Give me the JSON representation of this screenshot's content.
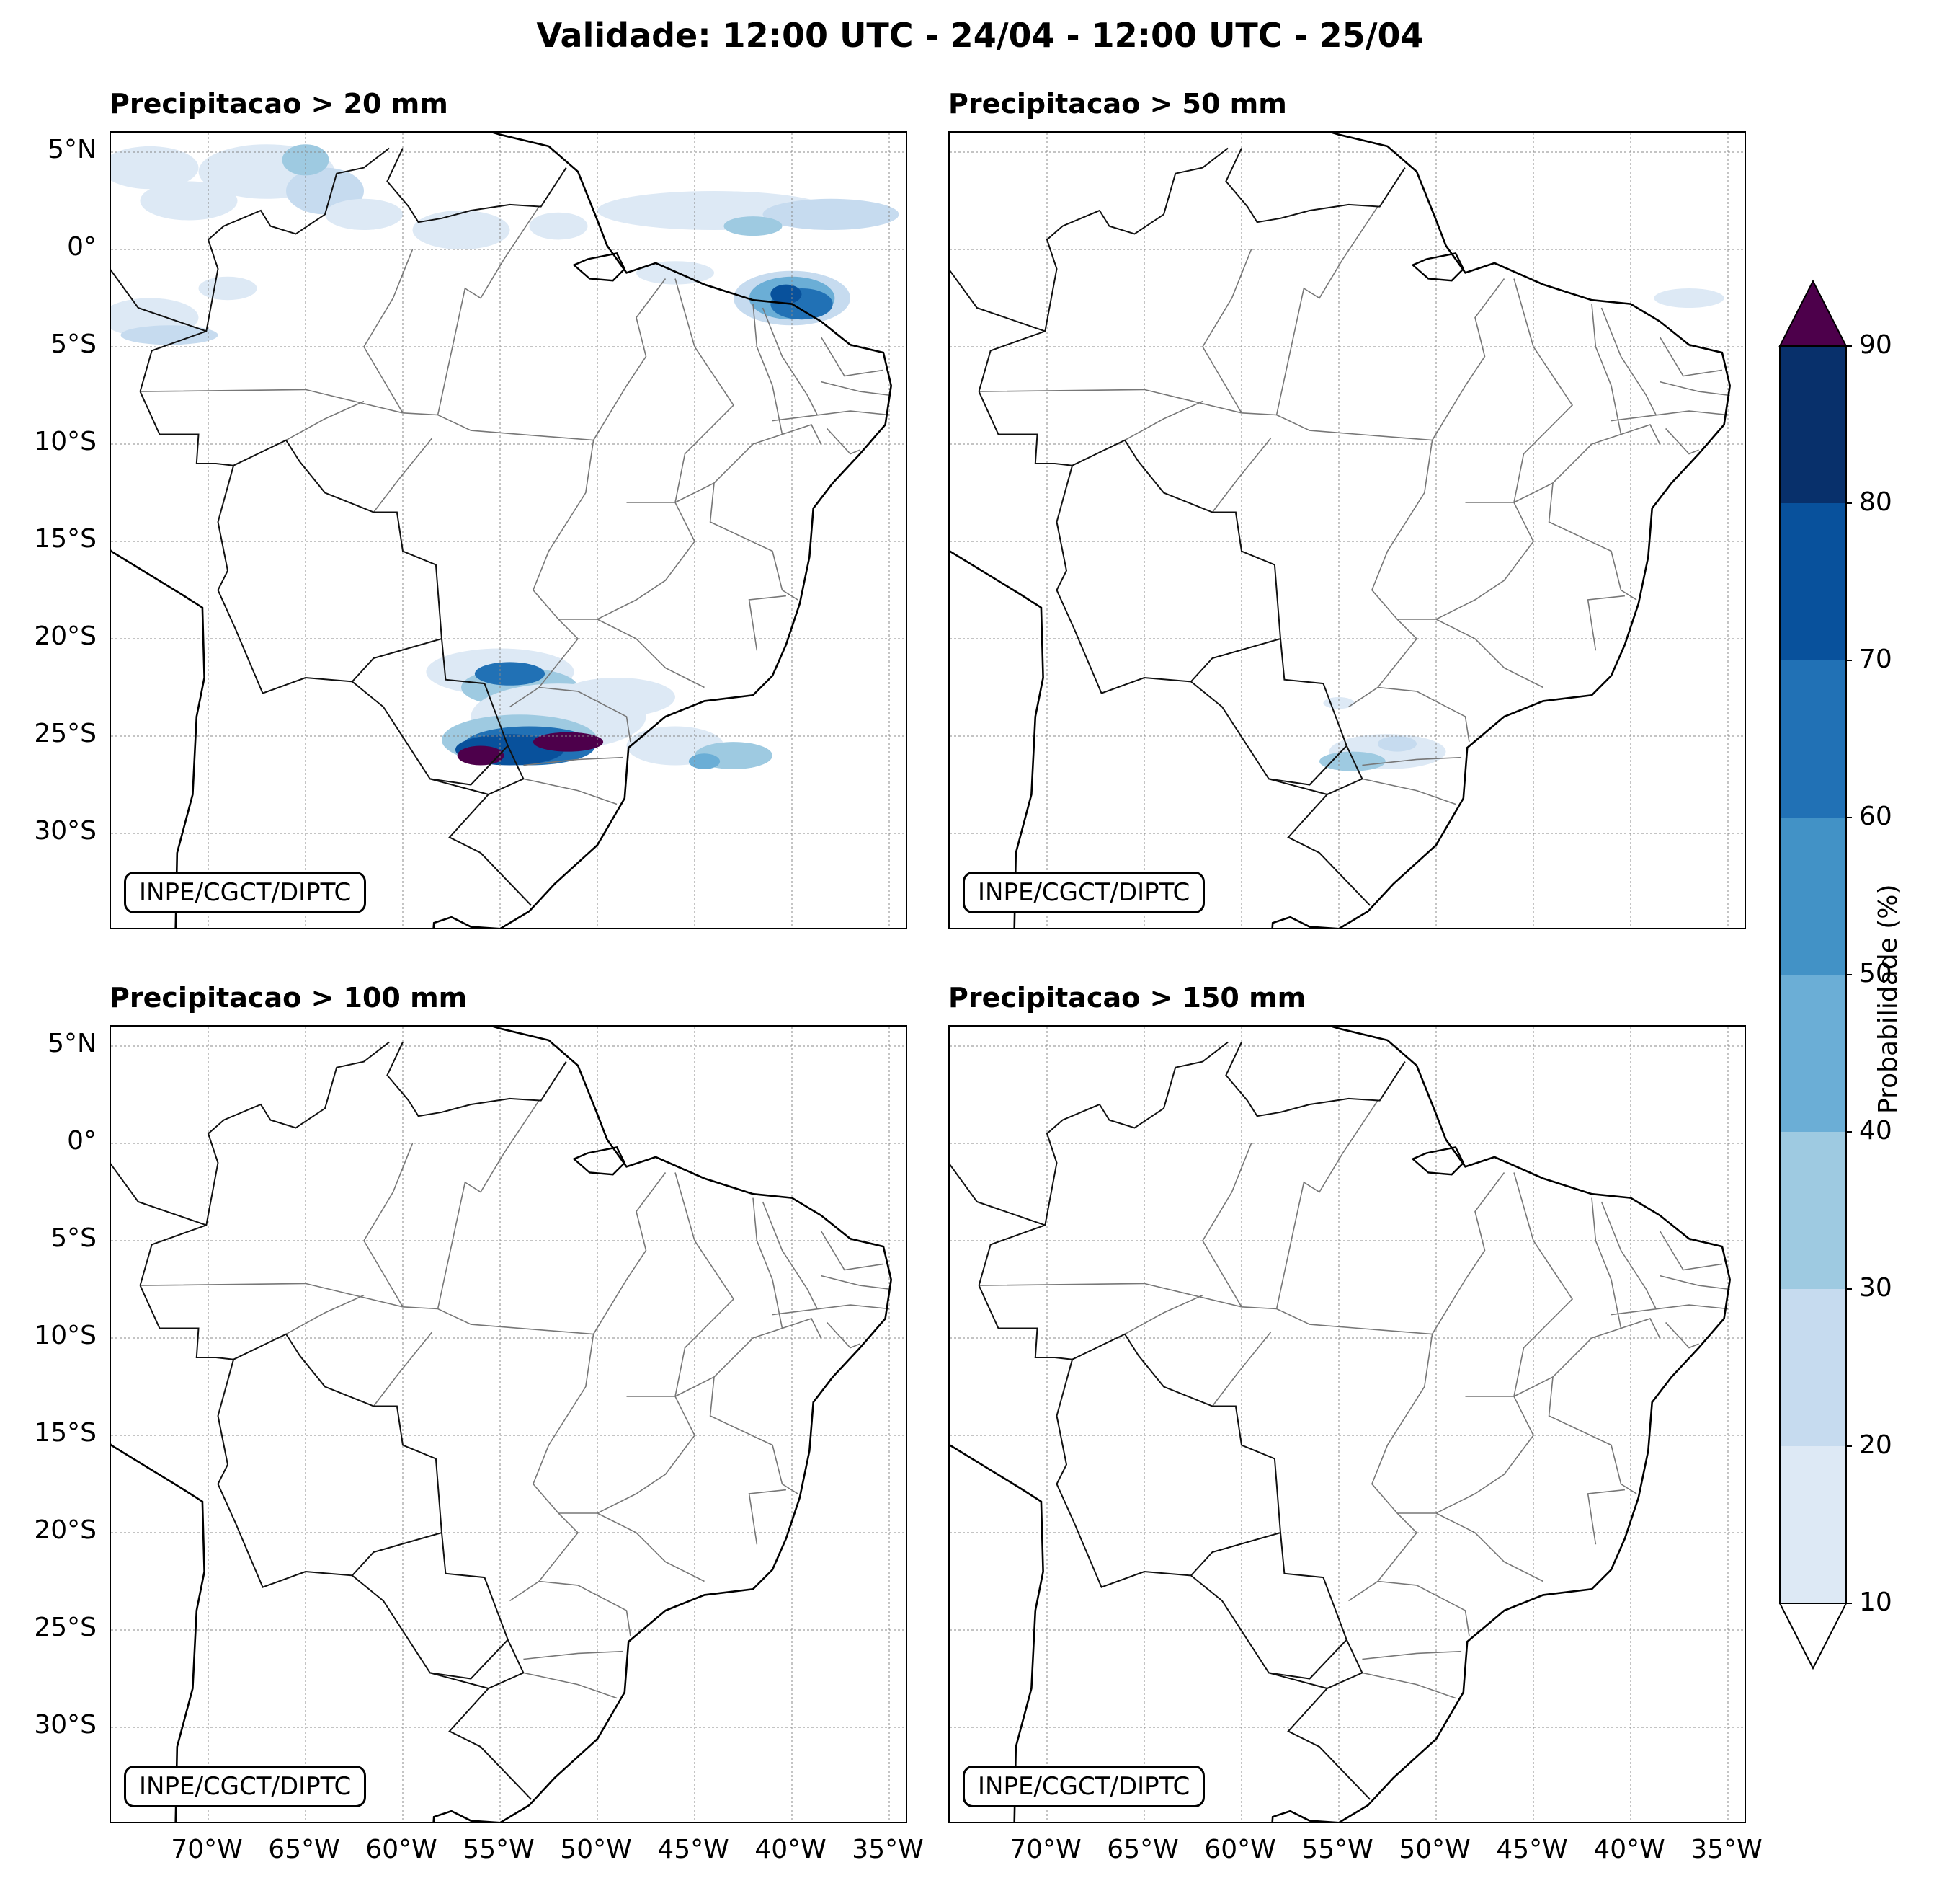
{
  "title": "Validade: 12:00 UTC - 24/04 - 12:00 UTC - 25/04",
  "panels": [
    {
      "id": "p20",
      "title": "Precipitacao > 20 mm",
      "credit": "INPE/CGCT/DIPTC"
    },
    {
      "id": "p50",
      "title": "Precipitacao > 50 mm",
      "credit": "INPE/CGCT/DIPTC"
    },
    {
      "id": "p100",
      "title": "Precipitacao > 100 mm",
      "credit": "INPE/CGCT/DIPTC"
    },
    {
      "id": "p150",
      "title": "Precipitacao > 150 mm",
      "credit": "INPE/CGCT/DIPTC"
    }
  ],
  "lat_labels": [
    "5°N",
    "0°",
    "5°S",
    "10°S",
    "15°S",
    "20°S",
    "25°S",
    "30°S"
  ],
  "lon_labels": [
    "70°W",
    "65°W",
    "60°W",
    "55°W",
    "50°W",
    "45°W",
    "40°W",
    "35°W"
  ],
  "colorbar": {
    "title": "Probabilidade (%)",
    "ticks": [
      "10",
      "20",
      "30",
      "40",
      "50",
      "60",
      "70",
      "80",
      "90"
    ],
    "colors": [
      "#dde9f5",
      "#c6dbef",
      "#9ecae1",
      "#6baed6",
      "#4292c6",
      "#2171b5",
      "#08519c",
      "#08306b"
    ],
    "over_color": "#4d004b",
    "under_color": "#ffffff"
  },
  "map_extent": {
    "lon_min": -75,
    "lon_max": -34,
    "lat_min": -35,
    "lat_max": 6
  }
}
